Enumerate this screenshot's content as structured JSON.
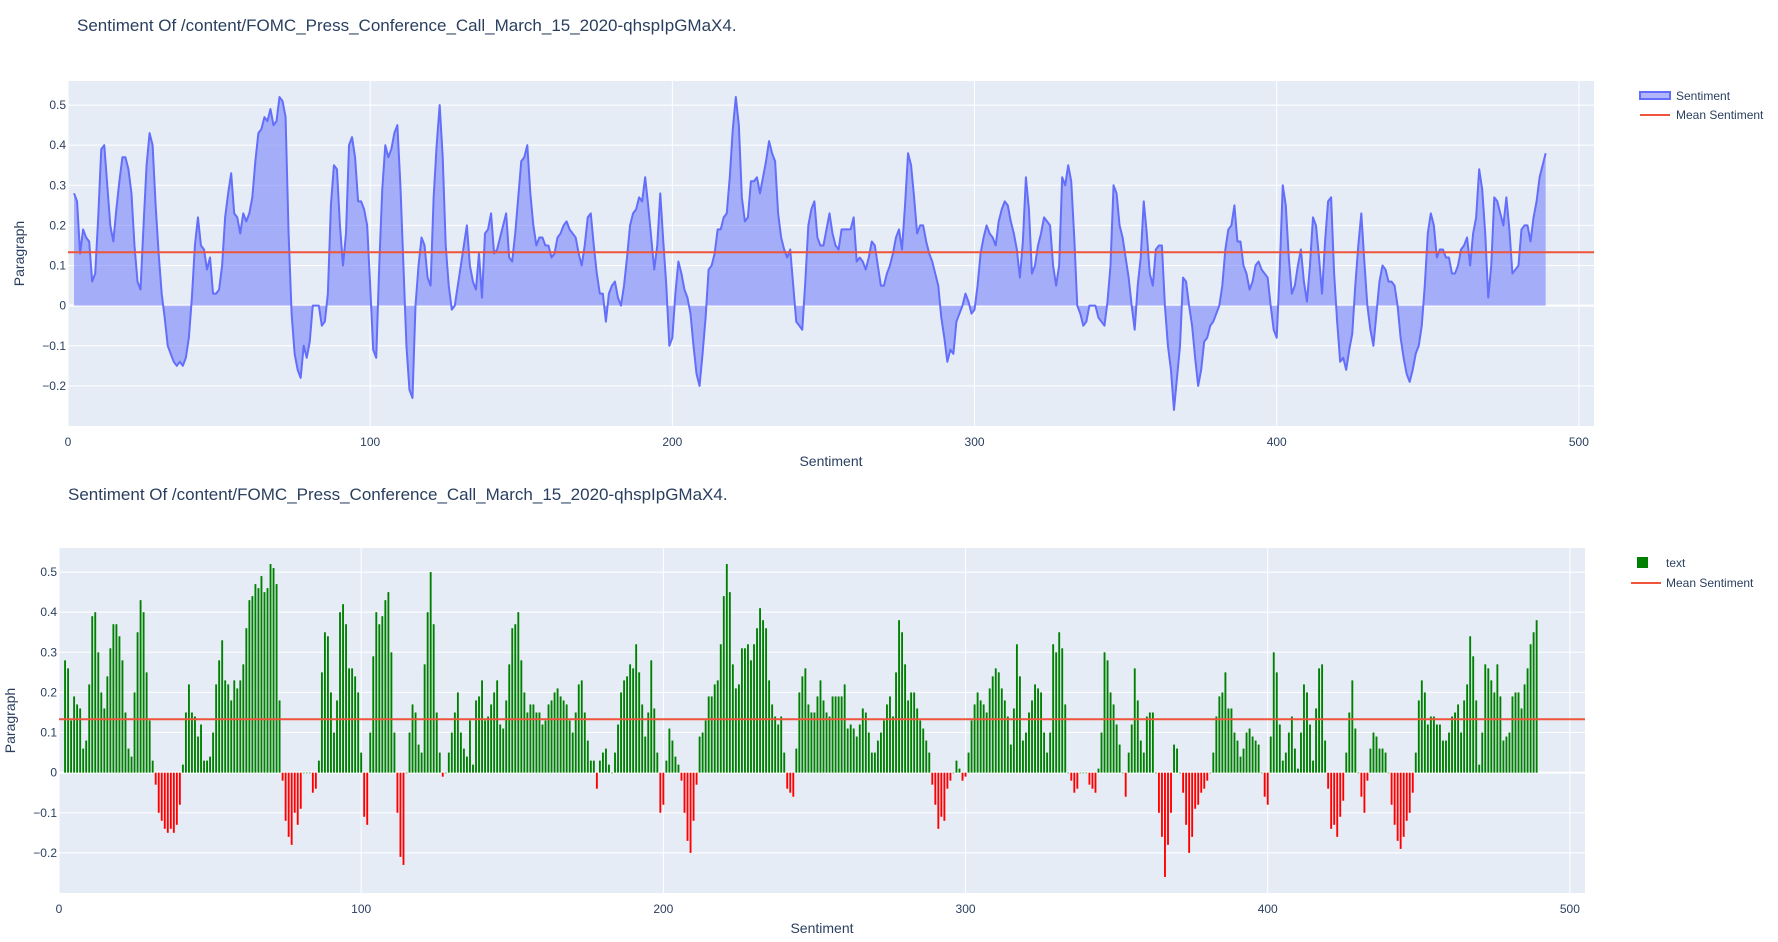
{
  "chart_data": [
    {
      "type": "area",
      "title": "Sentiment Of /content/FOMC_Press_Conference_Call_March_15_2020-qhspIpGMaX4.",
      "xlabel": "Sentiment",
      "ylabel": "Paragraph",
      "xlim": [
        0,
        505
      ],
      "ylim": [
        -0.3,
        0.56
      ],
      "xticks": [
        0,
        100,
        200,
        300,
        400,
        500
      ],
      "yticks": [
        -0.2,
        -0.1,
        0,
        0.1,
        0.2,
        0.3,
        0.4,
        0.5
      ],
      "legend_placement": "top-right, outside plot",
      "mean_sentiment": 0.133,
      "legend": [
        {
          "name": "Sentiment",
          "color": "#636efa"
        },
        {
          "name": "Mean Sentiment",
          "color": "#ef553b"
        }
      ]
    },
    {
      "type": "bar",
      "title": "Sentiment Of /content/FOMC_Press_Conference_Call_March_15_2020-qhspIpGMaX4.",
      "xlabel": "Sentiment",
      "ylabel": "Paragraph",
      "xlim": [
        0,
        505
      ],
      "ylim": [
        -0.3,
        0.56
      ],
      "xticks": [
        0,
        100,
        200,
        300,
        400,
        500
      ],
      "yticks": [
        -0.2,
        -0.1,
        0,
        0.1,
        0.2,
        0.3,
        0.4,
        0.5
      ],
      "legend_placement": "top-right, outside plot",
      "positive_color": "green",
      "negative_color": "red",
      "mean_sentiment": 0.133,
      "legend": [
        {
          "name": "text",
          "color": "green"
        },
        {
          "name": "Mean Sentiment",
          "color": "#ef553b"
        }
      ]
    }
  ],
  "series": {
    "name": "Sentiment",
    "x_start": 2,
    "values": [
      0.28,
      0.26,
      0.13,
      0.19,
      0.17,
      0.16,
      0.06,
      0.08,
      0.22,
      0.39,
      0.4,
      0.3,
      0.2,
      0.16,
      0.24,
      0.31,
      0.37,
      0.37,
      0.34,
      0.28,
      0.15,
      0.06,
      0.04,
      0.2,
      0.35,
      0.43,
      0.4,
      0.25,
      0.13,
      0.03,
      -0.03,
      -0.1,
      -0.12,
      -0.14,
      -0.15,
      -0.14,
      -0.15,
      -0.13,
      -0.08,
      0.02,
      0.15,
      0.22,
      0.15,
      0.14,
      0.09,
      0.12,
      0.03,
      0.03,
      0.04,
      0.1,
      0.22,
      0.28,
      0.33,
      0.23,
      0.22,
      0.18,
      0.23,
      0.21,
      0.23,
      0.27,
      0.36,
      0.43,
      0.44,
      0.47,
      0.46,
      0.49,
      0.45,
      0.46,
      0.52,
      0.51,
      0.47,
      0.18,
      -0.02,
      -0.12,
      -0.16,
      -0.18,
      -0.1,
      -0.13,
      -0.09,
      0.0,
      0.0,
      0.0,
      -0.05,
      -0.04,
      0.03,
      0.25,
      0.35,
      0.34,
      0.2,
      0.1,
      0.18,
      0.4,
      0.42,
      0.37,
      0.26,
      0.26,
      0.24,
      0.2,
      0.05,
      -0.11,
      -0.13,
      0.1,
      0.29,
      0.4,
      0.37,
      0.39,
      0.43,
      0.45,
      0.3,
      0.1,
      -0.1,
      -0.21,
      -0.23,
      0.0,
      0.1,
      0.17,
      0.15,
      0.07,
      0.05,
      0.27,
      0.4,
      0.5,
      0.37,
      0.15,
      0.05,
      -0.01,
      0.0,
      0.05,
      0.1,
      0.15,
      0.2,
      0.1,
      0.06,
      0.04,
      0.13,
      0.02,
      0.18,
      0.19,
      0.23,
      0.13,
      0.14,
      0.17,
      0.2,
      0.23,
      0.12,
      0.11,
      0.18,
      0.27,
      0.36,
      0.37,
      0.4,
      0.28,
      0.2,
      0.15,
      0.17,
      0.17,
      0.15,
      0.15,
      0.12,
      0.13,
      0.17,
      0.18,
      0.2,
      0.21,
      0.19,
      0.18,
      0.17,
      0.13,
      0.1,
      0.15,
      0.22,
      0.23,
      0.15,
      0.08,
      0.03,
      0.03,
      -0.04,
      0.03,
      0.05,
      0.06,
      0.02,
      0.0,
      0.05,
      0.12,
      0.2,
      0.23,
      0.24,
      0.27,
      0.26,
      0.32,
      0.25,
      0.17,
      0.09,
      0.15,
      0.28,
      0.16,
      0.05,
      -0.1,
      -0.08,
      0.03,
      0.11,
      0.08,
      0.04,
      0.02,
      -0.02,
      -0.1,
      -0.17,
      -0.2,
      -0.12,
      -0.03,
      0.09,
      0.1,
      0.13,
      0.19,
      0.19,
      0.22,
      0.23,
      0.32,
      0.44,
      0.52,
      0.45,
      0.27,
      0.21,
      0.22,
      0.31,
      0.31,
      0.32,
      0.28,
      0.32,
      0.36,
      0.41,
      0.38,
      0.36,
      0.23,
      0.17,
      0.14,
      0.12,
      0.14,
      0.05,
      -0.04,
      -0.05,
      -0.06,
      0.06,
      0.2,
      0.24,
      0.26,
      0.17,
      0.15,
      0.15,
      0.19,
      0.23,
      0.18,
      0.15,
      0.14,
      0.19,
      0.19,
      0.19,
      0.19,
      0.22,
      0.11,
      0.12,
      0.11,
      0.09,
      0.12,
      0.16,
      0.15,
      0.1,
      0.05,
      0.05,
      0.08,
      0.1,
      0.13,
      0.17,
      0.19,
      0.14,
      0.25,
      0.38,
      0.35,
      0.27,
      0.18,
      0.2,
      0.2,
      0.16,
      0.13,
      0.11,
      0.08,
      0.05,
      -0.03,
      -0.08,
      -0.14,
      -0.11,
      -0.12,
      -0.04,
      -0.02,
      0.0,
      0.03,
      0.01,
      -0.02,
      -0.01,
      0.05,
      0.13,
      0.17,
      0.2,
      0.18,
      0.17,
      0.15,
      0.21,
      0.24,
      0.26,
      0.25,
      0.21,
      0.18,
      0.14,
      0.07,
      0.16,
      0.32,
      0.24,
      0.08,
      0.1,
      0.15,
      0.18,
      0.22,
      0.21,
      0.2,
      0.1,
      0.05,
      0.1,
      0.32,
      0.3,
      0.35,
      0.31,
      0.17,
      0.0,
      -0.02,
      -0.05,
      -0.04,
      0.0,
      0.0,
      0.0,
      -0.03,
      -0.04,
      -0.05,
      0.01,
      0.1,
      0.3,
      0.28,
      0.2,
      0.17,
      0.12,
      0.07,
      0.0,
      -0.06,
      0.05,
      0.12,
      0.26,
      0.18,
      0.08,
      0.05,
      0.14,
      0.15,
      0.15,
      0.0,
      -0.1,
      -0.16,
      -0.26,
      -0.18,
      -0.1,
      0.07,
      0.06,
      0.0,
      -0.05,
      -0.13,
      -0.2,
      -0.16,
      -0.09,
      -0.08,
      -0.05,
      -0.04,
      -0.02,
      0.0,
      0.05,
      0.14,
      0.19,
      0.2,
      0.25,
      0.16,
      0.16,
      0.1,
      0.08,
      0.04,
      0.06,
      0.1,
      0.11,
      0.09,
      0.08,
      0.07,
      0.0,
      -0.06,
      -0.08,
      0.09,
      0.3,
      0.25,
      0.12,
      0.03,
      0.05,
      0.1,
      0.14,
      0.06,
      0.01,
      0.1,
      0.22,
      0.2,
      0.12,
      0.03,
      0.16,
      0.26,
      0.27,
      0.08,
      -0.04,
      -0.14,
      -0.13,
      -0.16,
      -0.11,
      -0.07,
      0.05,
      0.15,
      0.23,
      0.11,
      0.0,
      -0.06,
      -0.1,
      -0.02,
      0.06,
      0.1,
      0.09,
      0.06,
      0.06,
      0.05,
      0.0,
      -0.08,
      -0.13,
      -0.17,
      -0.19,
      -0.16,
      -0.12,
      -0.1,
      -0.05,
      0.05,
      0.18,
      0.23,
      0.2,
      0.12,
      0.14,
      0.14,
      0.12,
      0.12,
      0.08,
      0.08,
      0.1,
      0.14,
      0.15,
      0.17,
      0.1,
      0.18,
      0.22,
      0.34,
      0.29,
      0.18,
      0.02,
      0.1,
      0.27,
      0.26,
      0.23,
      0.2,
      0.27,
      0.19,
      0.08,
      0.09,
      0.1,
      0.19,
      0.2,
      0.2,
      0.16,
      0.22,
      0.26,
      0.32,
      0.35,
      0.38
    ]
  },
  "panels": [
    {
      "title": "Sentiment Of /content/FOMC_Press_Conference_Call_March_15_2020-qhspIpGMaX4.",
      "xlabel": "Sentiment",
      "ylabel": "Paragraph",
      "legend": [
        "Sentiment",
        "Mean Sentiment"
      ]
    },
    {
      "title": "Sentiment Of /content/FOMC_Press_Conference_Call_March_15_2020-qhspIpGMaX4.",
      "xlabel": "Sentiment",
      "ylabel": "Paragraph",
      "legend": [
        "text",
        "Mean Sentiment"
      ]
    }
  ],
  "colors": {
    "plot_bg": "#e5ecf6",
    "grid": "#ffffff",
    "area_line": "#636efa",
    "area_fill": "rgba(99,110,250,0.5)",
    "mean_line": "#ef553b",
    "bar_positive": "green",
    "bar_negative": "red",
    "text": "#2a3f5f"
  }
}
